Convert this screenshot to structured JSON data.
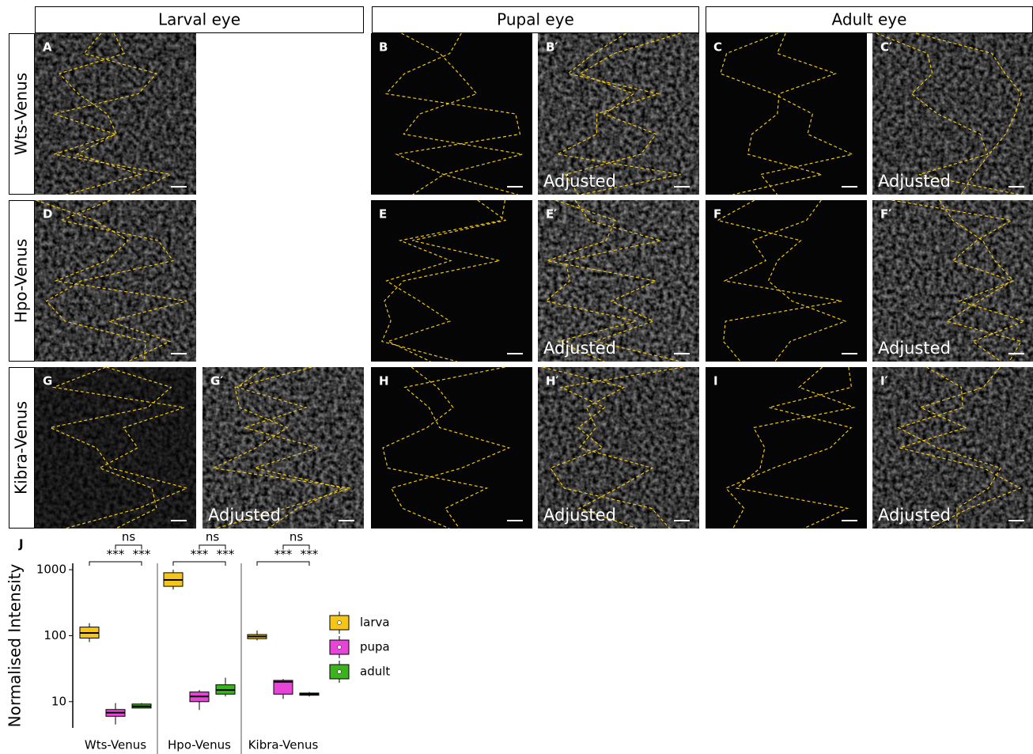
{
  "figure": {
    "headers": [
      "Larval eye",
      "Pupal eye",
      "Adult eye"
    ],
    "rows": [
      "Wts-Venus",
      "Hpo-Venus",
      "Kibra-Venus"
    ],
    "panels": [
      {
        "label": "A"
      },
      {
        "label": "B"
      },
      {
        "label": "B′",
        "note": "Adjusted"
      },
      {
        "label": "C"
      },
      {
        "label": "C′",
        "note": "Adjusted"
      },
      {
        "label": "D"
      },
      {
        "label": "E"
      },
      {
        "label": "E′",
        "note": "Adjusted"
      },
      {
        "label": "F"
      },
      {
        "label": "F′",
        "note": "Adjusted"
      },
      {
        "label": "G"
      },
      {
        "label": "G′",
        "note": "Adjusted"
      },
      {
        "label": "H"
      },
      {
        "label": "H′",
        "note": "Adjusted"
      },
      {
        "label": "I"
      },
      {
        "label": "I′",
        "note": "Adjusted"
      }
    ]
  },
  "chart_data": {
    "type": "box",
    "panel_label": "J",
    "ylabel": "Normalised Intensity",
    "log_scale": true,
    "ylim": [
      4,
      1250
    ],
    "yticks": [
      10,
      100,
      1000
    ],
    "groups": [
      "Wts-Venus",
      "Hpo-Venus",
      "Kibra-Venus"
    ],
    "significance": [
      [
        "ns",
        "***",
        "***"
      ],
      [
        "ns",
        "***",
        "***"
      ],
      [
        "ns",
        "***",
        "***"
      ]
    ],
    "series": [
      {
        "name": "larva",
        "color": "#f5c518",
        "boxes": [
          {
            "min": 80,
            "q1": 92,
            "median": 110,
            "q3": 135,
            "max": 155
          },
          {
            "min": 500,
            "q1": 560,
            "median": 700,
            "q3": 900,
            "max": 1000
          },
          {
            "min": 85,
            "q1": 90,
            "median": 97,
            "q3": 104,
            "max": 120
          }
        ]
      },
      {
        "name": "pupa",
        "color": "#e845d8",
        "boxes": [
          {
            "min": 4.5,
            "q1": 6,
            "median": 6.8,
            "q3": 7.6,
            "max": 9.5
          },
          {
            "min": 7.5,
            "q1": 10,
            "median": 12,
            "q3": 14,
            "max": 15
          },
          {
            "min": 11,
            "q1": 13,
            "median": 20,
            "q3": 21,
            "max": 22
          }
        ]
      },
      {
        "name": "adult",
        "color": "#3cb21e",
        "boxes": [
          {
            "min": 8,
            "q1": 8,
            "median": 8.5,
            "q3": 9.2,
            "max": 9.5
          },
          {
            "min": 12,
            "q1": 13,
            "median": 15,
            "q3": 18,
            "max": 23
          },
          {
            "min": 12,
            "q1": 12.5,
            "median": 13,
            "q3": 13.5,
            "max": 14
          }
        ]
      }
    ]
  }
}
